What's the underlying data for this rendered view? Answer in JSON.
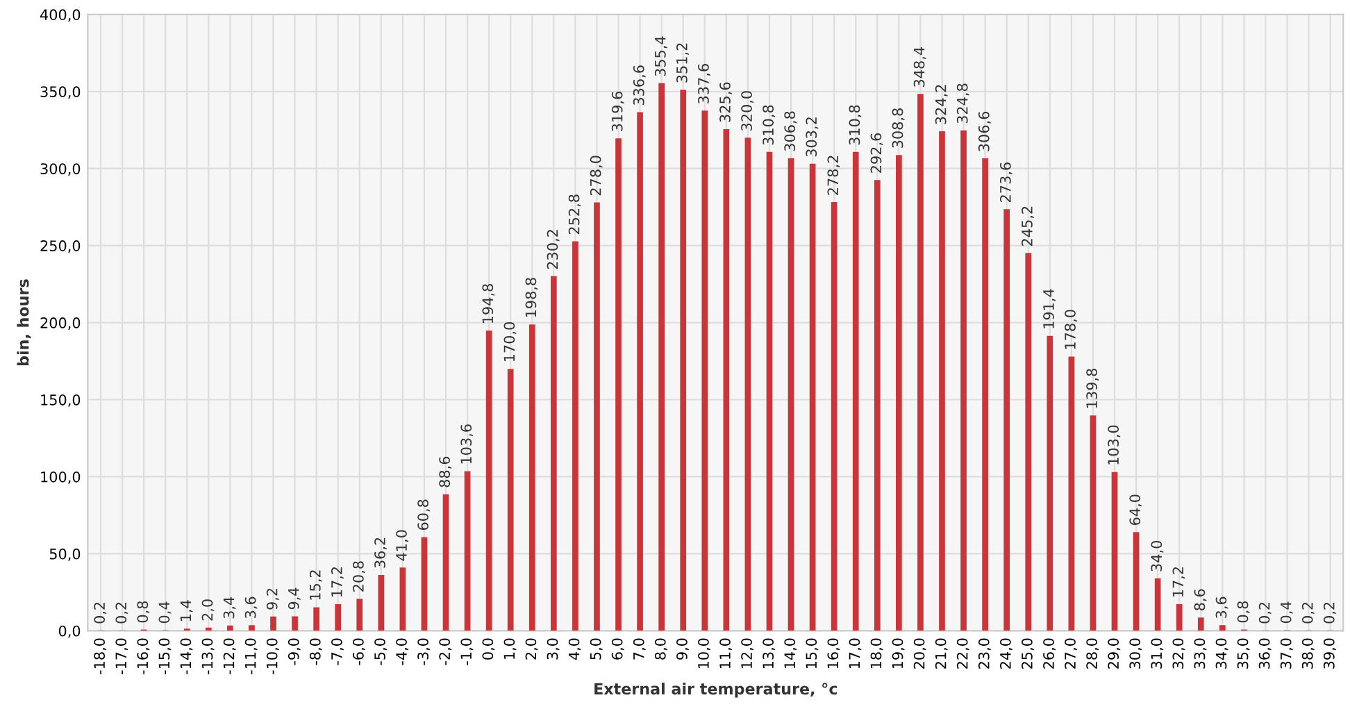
{
  "chart_data": {
    "type": "bar",
    "xlabel": "External air temperature, °c",
    "ylabel": "bin, hours",
    "categories": [
      "-18,0",
      "-17,0",
      "-16,0",
      "-15,0",
      "-14,0",
      "-13,0",
      "-12,0",
      "-11,0",
      "-10,0",
      "-9,0",
      "-8,0",
      "-7,0",
      "-6,0",
      "-5,0",
      "-4,0",
      "-3,0",
      "-2,0",
      "-1,0",
      "0,0",
      "1,0",
      "2,0",
      "3,0",
      "4,0",
      "5,0",
      "6,0",
      "7,0",
      "8,0",
      "9,0",
      "10,0",
      "11,0",
      "12,0",
      "13,0",
      "14,0",
      "15,0",
      "16,0",
      "17,0",
      "18,0",
      "19,0",
      "20,0",
      "21,0",
      "22,0",
      "23,0",
      "24,0",
      "25,0",
      "26,0",
      "27,0",
      "28,0",
      "29,0",
      "30,0",
      "31,0",
      "32,0",
      "33,0",
      "34,0",
      "35,0",
      "36,0",
      "37,0",
      "38,0",
      "39,0"
    ],
    "values": [
      0.2,
      0.2,
      0.8,
      0.4,
      1.4,
      2.0,
      3.4,
      3.6,
      9.2,
      9.4,
      15.2,
      17.2,
      20.8,
      36.2,
      41.0,
      60.8,
      88.6,
      103.6,
      194.8,
      170.0,
      198.8,
      230.2,
      252.8,
      278.0,
      319.6,
      336.6,
      355.4,
      351.2,
      337.6,
      325.6,
      320.0,
      310.8,
      306.8,
      303.2,
      278.2,
      310.8,
      292.6,
      308.8,
      348.4,
      324.2,
      324.8,
      306.6,
      273.6,
      245.2,
      191.4,
      178.0,
      139.8,
      103.0,
      64.0,
      34.0,
      17.2,
      8.6,
      3.6,
      0.8,
      0.2,
      0.4,
      0.2,
      0.2
    ],
    "value_labels": [
      "0,2",
      "0,2",
      "0,8",
      "0,4",
      "1,4",
      "2,0",
      "3,4",
      "3,6",
      "9,2",
      "9,4",
      "15,2",
      "17,2",
      "20,8",
      "36,2",
      "41,0",
      "60,8",
      "88,6",
      "103,6",
      "194,8",
      "170,0",
      "198,8",
      "230,2",
      "252,8",
      "278,0",
      "319,6",
      "336,6",
      "355,4",
      "351,2",
      "337,6",
      "325,6",
      "320,0",
      "310,8",
      "306,8",
      "303,2",
      "278,2",
      "310,8",
      "292,6",
      "308,8",
      "348,4",
      "324,2",
      "324,8",
      "306,6",
      "273,6",
      "245,2",
      "191,4",
      "178,0",
      "139,8",
      "103,0",
      "64,0",
      "34,0",
      "17,2",
      "8,6",
      "3,6",
      "0,8",
      "0,2",
      "0,4",
      "0,2",
      "0,2"
    ],
    "color": "#c8363a",
    "ylim": [
      0,
      400
    ],
    "yticks": [
      {
        "value": 0,
        "label": "0,0"
      },
      {
        "value": 50,
        "label": "50,0"
      },
      {
        "value": 100,
        "label": "100,0"
      },
      {
        "value": 150,
        "label": "150,0"
      },
      {
        "value": 200,
        "label": "200,0"
      },
      {
        "value": 250,
        "label": "250,0"
      },
      {
        "value": 300,
        "label": "300,0"
      },
      {
        "value": 350,
        "label": "350,0"
      },
      {
        "value": 400,
        "label": "400,0"
      }
    ],
    "grid": true
  }
}
